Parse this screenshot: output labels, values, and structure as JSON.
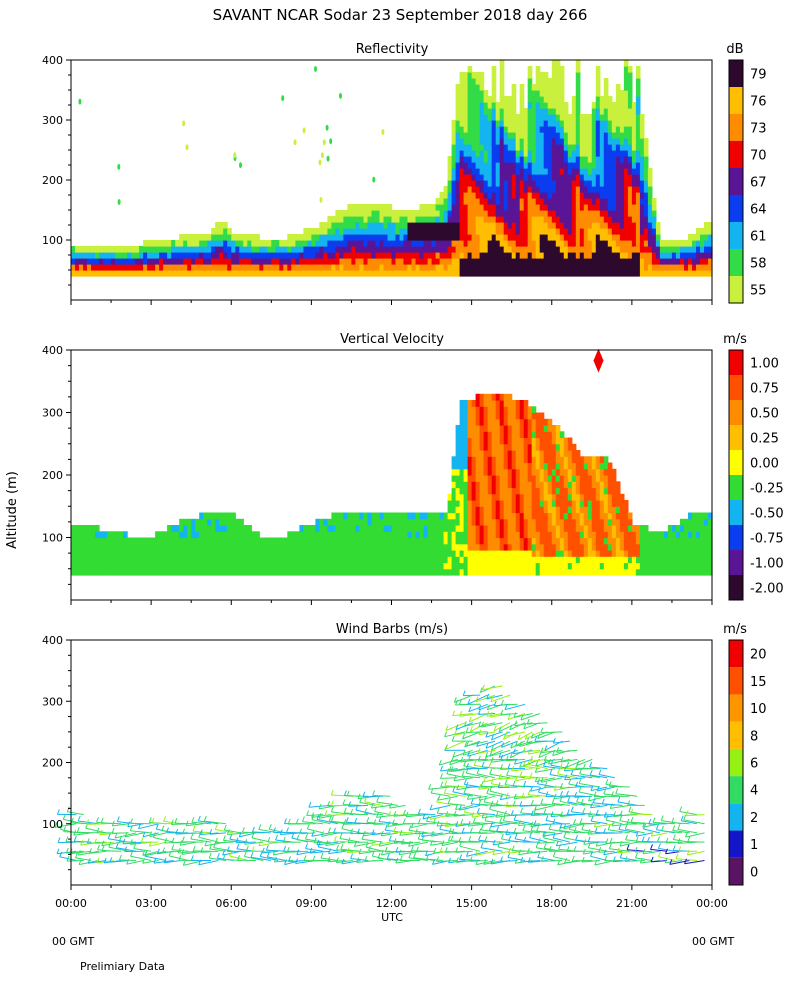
{
  "title": "SAVANT   NCAR Sodar   23 September 2018   day 266",
  "ylabel": "Altitude (m)",
  "xlabel": "UTC",
  "gmt_left": "00 GMT",
  "gmt_right": "00 GMT",
  "footnote": "Prelimiary Data",
  "time_ticks": [
    "00:00",
    "03:00",
    "06:00",
    "09:00",
    "12:00",
    "15:00",
    "18:00",
    "21:00",
    "00:00"
  ],
  "altitude_ticks": [
    "100",
    "200",
    "300",
    "400"
  ],
  "colors": {
    "refl": [
      "#c8f03c",
      "#32dc46",
      "#14b4f0",
      "#0a3cf0",
      "#5a1496",
      "#f00000",
      "#ff8c00",
      "#ffbe00",
      "#2d0a2d"
    ],
    "vel": [
      "#2d0a2d",
      "#5a1496",
      "#0a3cf0",
      "#14b4f0",
      "#32dc32",
      "#ffff00",
      "#ffbe00",
      "#ff8c00",
      "#ff5000",
      "#f00000"
    ],
    "wind": [
      "#5a1464",
      "#1414c8",
      "#14b4f0",
      "#32dc64",
      "#96f014",
      "#ffbe00",
      "#ff9600",
      "#ff5000",
      "#f00000"
    ]
  },
  "chart_data": [
    {
      "type": "heatmap",
      "title": "Reflectivity",
      "units": "dB",
      "x_range_hours": [
        0,
        24
      ],
      "ylim": [
        0,
        400
      ],
      "colorbar_labels": [
        "55",
        "58",
        "61",
        "64",
        "67",
        "70",
        "73",
        "76",
        "79"
      ],
      "colorbar_values": [
        55,
        58,
        61,
        64,
        67,
        70,
        73,
        76,
        79
      ],
      "echo_top_profile": {
        "hours": [
          0,
          1,
          2,
          3,
          4,
          5,
          5.5,
          6,
          7,
          8,
          9,
          10,
          11,
          12,
          13,
          13.5,
          14,
          14.5,
          15,
          16,
          17,
          18,
          19,
          20,
          21,
          22,
          23,
          24
        ],
        "top_altitude_m": [
          90,
          85,
          80,
          95,
          100,
          105,
          130,
          110,
          100,
          100,
          115,
          145,
          160,
          150,
          150,
          160,
          190,
          400,
          400,
          400,
          400,
          400,
          400,
          400,
          400,
          90,
          100,
          130
        ]
      }
    },
    {
      "type": "heatmap",
      "title": "Vertical Velocity",
      "units": "m/s",
      "x_range_hours": [
        0,
        24
      ],
      "ylim": [
        0,
        400
      ],
      "colorbar_labels": [
        "-2.00",
        "-1.00",
        "-0.75",
        "-0.50",
        "-0.25",
        "0.00",
        "0.25",
        "0.50",
        "0.75",
        "1.00"
      ],
      "colorbar_values": [
        -2.0,
        -1.0,
        -0.75,
        -0.5,
        -0.25,
        0.0,
        0.25,
        0.5,
        0.75,
        1.0
      ],
      "column_top_profile": {
        "hours": [
          0,
          1,
          2,
          3,
          4,
          5,
          6,
          7,
          8,
          9,
          10,
          11,
          12,
          13,
          14,
          14.5,
          15,
          16,
          17,
          18,
          19,
          20,
          21,
          22,
          23,
          24
        ],
        "top_altitude_m": [
          120,
          110,
          100,
          100,
          120,
          135,
          135,
          100,
          100,
          120,
          135,
          135,
          135,
          135,
          135,
          310,
          320,
          330,
          310,
          280,
          230,
          230,
          120,
          100,
          130,
          140
        ]
      }
    },
    {
      "type": "barbs",
      "title": "Wind Barbs (m/s)",
      "units": "m/s",
      "x_range_hours": [
        0,
        24
      ],
      "ylim": [
        0,
        400
      ],
      "colorbar_labels": [
        "0",
        "1",
        "2",
        "4",
        "6",
        "8",
        "10",
        "15",
        "20"
      ],
      "colorbar_values": [
        0,
        1,
        2,
        4,
        6,
        8,
        10,
        15,
        20
      ]
    }
  ]
}
